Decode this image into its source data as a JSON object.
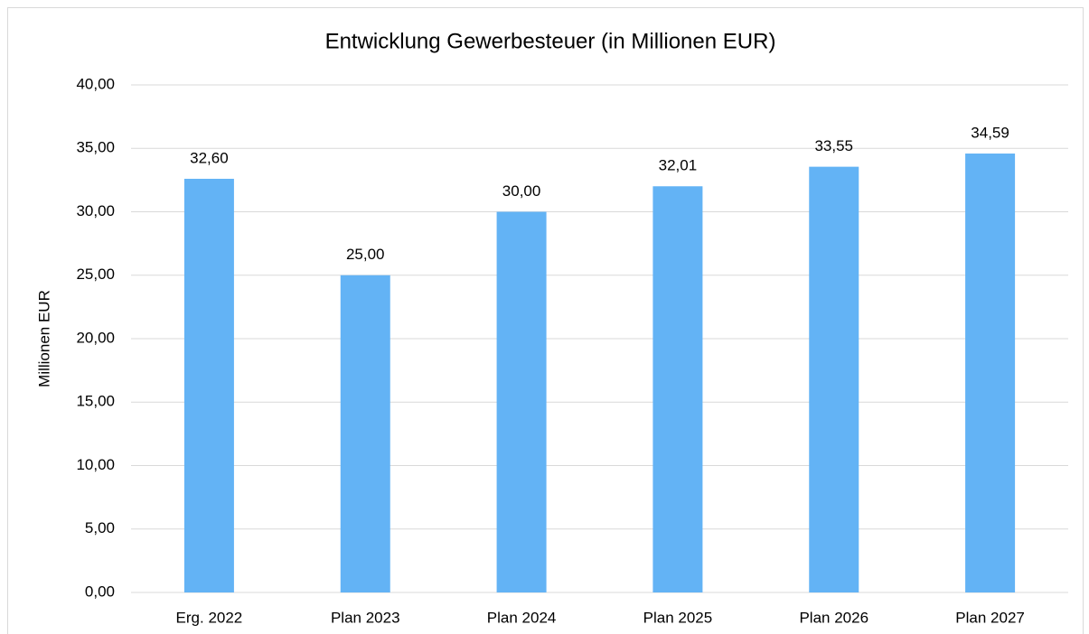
{
  "chart_data": {
    "type": "bar",
    "title": "Entwicklung Gewerbesteuer  (in Millionen EUR)",
    "y_label": "Millionen EUR",
    "categories": [
      "Erg. 2022",
      "Plan 2023",
      "Plan 2024",
      "Plan 2025",
      "Plan 2026",
      "Plan 2027"
    ],
    "values": [
      32.6,
      25.0,
      30.0,
      32.01,
      33.55,
      34.59
    ],
    "value_labels": [
      "32,60",
      "25,00",
      "30,00",
      "32,01",
      "33,55",
      "34,59"
    ],
    "color": "#63b3f5",
    "ylim": [
      0,
      40
    ],
    "yticks": [
      {
        "value": 0,
        "label": "0,00"
      },
      {
        "value": 5,
        "label": "5,00"
      },
      {
        "value": 10,
        "label": "10,00"
      },
      {
        "value": 15,
        "label": "15,00"
      },
      {
        "value": 20,
        "label": "20,00"
      },
      {
        "value": 25,
        "label": "25,00"
      },
      {
        "value": 30,
        "label": "30,00"
      },
      {
        "value": 35,
        "label": "35,00"
      },
      {
        "value": 40,
        "label": "40,00"
      }
    ],
    "grid": true
  }
}
